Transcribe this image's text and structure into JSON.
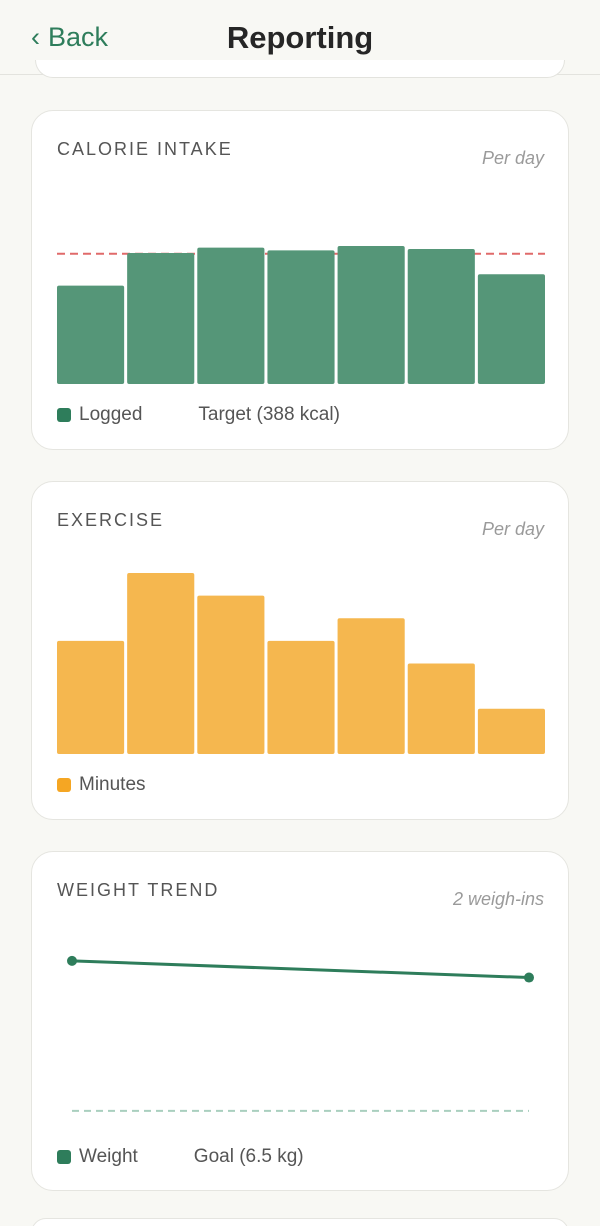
{
  "nav": {
    "back_label": "Back",
    "title": "Reporting"
  },
  "calorie": {
    "title": "CALORIE INTAKE",
    "subtitle": "Per day",
    "legend_primary": "Logged",
    "legend_secondary": "Target (388 kcal)",
    "bar_color": "#559678",
    "target_color": "#e06a6a"
  },
  "exercise": {
    "title": "EXERCISE",
    "subtitle": "Per day",
    "legend_primary": "Minutes",
    "bar_color": "#f5b74f"
  },
  "weight": {
    "title": "WEIGHT TREND",
    "subtitle": "2 weigh-ins",
    "legend_primary": "Weight",
    "legend_secondary": "Goal (6.5 kg)",
    "line_color": "#2e7d5b",
    "goal_color": "#a9cfbf"
  },
  "chart_data": [
    {
      "type": "bar",
      "categories": [
        "",
        "",
        "",
        "",
        "",
        "",
        ""
      ],
      "series": [
        {
          "name": "Logged",
          "values": [
            293,
            390,
            406,
            398,
            411,
            402,
            327
          ]
        }
      ],
      "target": 388,
      "ylim": [
        0,
        460
      ]
    },
    {
      "type": "bar",
      "categories": [
        "",
        "",
        "",
        "",
        "",
        "",
        ""
      ],
      "series": [
        {
          "name": "Minutes",
          "values": [
            50,
            80,
            70,
            50,
            60,
            40,
            20
          ]
        }
      ],
      "ylim": [
        0,
        80
      ]
    },
    {
      "type": "line",
      "x": [
        1,
        2
      ],
      "series": [
        {
          "name": "Weight",
          "values": [
            9.2,
            8.9
          ]
        }
      ],
      "goal": 6.5,
      "ylim": [
        6.3,
        9.9
      ]
    }
  ]
}
